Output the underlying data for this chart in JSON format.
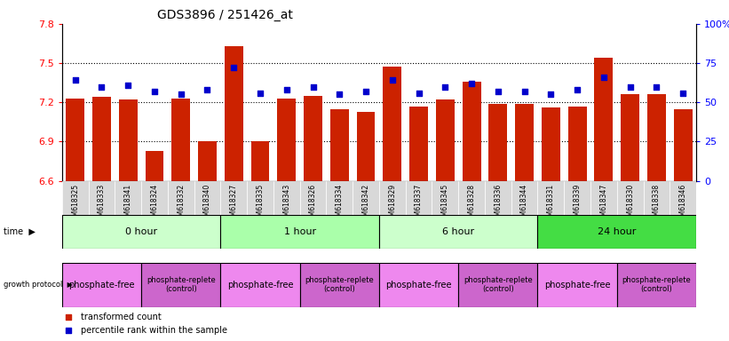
{
  "title": "GDS3896 / 251426_at",
  "samples": [
    "GSM618325",
    "GSM618333",
    "GSM618341",
    "GSM618324",
    "GSM618332",
    "GSM618340",
    "GSM618327",
    "GSM618335",
    "GSM618343",
    "GSM618326",
    "GSM618334",
    "GSM618342",
    "GSM618329",
    "GSM618337",
    "GSM618345",
    "GSM618328",
    "GSM618336",
    "GSM618344",
    "GSM618331",
    "GSM618339",
    "GSM618347",
    "GSM618330",
    "GSM618338",
    "GSM618346"
  ],
  "bar_values": [
    7.23,
    7.24,
    7.22,
    6.83,
    7.23,
    6.9,
    7.63,
    6.9,
    7.23,
    7.25,
    7.15,
    7.13,
    7.47,
    7.17,
    7.22,
    7.36,
    7.19,
    7.19,
    7.16,
    7.17,
    7.54,
    7.26,
    7.26,
    7.15
  ],
  "dot_values": [
    64,
    60,
    61,
    57,
    55,
    58,
    72,
    56,
    58,
    60,
    55,
    57,
    64,
    56,
    60,
    62,
    57,
    57,
    55,
    58,
    66,
    60,
    60,
    56
  ],
  "ylim_left": [
    6.6,
    7.8
  ],
  "ylim_right": [
    0,
    100
  ],
  "yticks_left": [
    6.6,
    6.9,
    7.2,
    7.5,
    7.8
  ],
  "yticks_right": [
    0,
    25,
    50,
    75,
    100
  ],
  "ytick_labels_right": [
    "0",
    "25",
    "50",
    "75",
    "100%"
  ],
  "hgrid_vals": [
    6.9,
    7.2,
    7.5
  ],
  "bar_color": "#cc2200",
  "dot_color": "#0000cc",
  "background_color": "#ffffff",
  "plot_bg_color": "#ffffff",
  "xticklabel_bg": "#d8d8d8",
  "time_groups": [
    {
      "label": "0 hour",
      "start": 0,
      "end": 6,
      "color": "#ccffcc"
    },
    {
      "label": "1 hour",
      "start": 6,
      "end": 12,
      "color": "#aaffaa"
    },
    {
      "label": "6 hour",
      "start": 12,
      "end": 18,
      "color": "#ccffcc"
    },
    {
      "label": "24 hour",
      "start": 18,
      "end": 24,
      "color": "#44dd44"
    }
  ],
  "protocol_groups": [
    {
      "label": "phosphate-free",
      "start": 0,
      "end": 3,
      "color": "#ee88ee",
      "fontsize": 7
    },
    {
      "label": "phosphate-replete\n(control)",
      "start": 3,
      "end": 6,
      "color": "#cc66cc",
      "fontsize": 6
    },
    {
      "label": "phosphate-free",
      "start": 6,
      "end": 9,
      "color": "#ee88ee",
      "fontsize": 7
    },
    {
      "label": "phosphate-replete\n(control)",
      "start": 9,
      "end": 12,
      "color": "#cc66cc",
      "fontsize": 6
    },
    {
      "label": "phosphate-free",
      "start": 12,
      "end": 15,
      "color": "#ee88ee",
      "fontsize": 7
    },
    {
      "label": "phosphate-replete\n(control)",
      "start": 15,
      "end": 18,
      "color": "#cc66cc",
      "fontsize": 6
    },
    {
      "label": "phosphate-free",
      "start": 18,
      "end": 21,
      "color": "#ee88ee",
      "fontsize": 7
    },
    {
      "label": "phosphate-replete\n(control)",
      "start": 21,
      "end": 24,
      "color": "#cc66cc",
      "fontsize": 6
    }
  ],
  "legend_items": [
    {
      "label": "transformed count",
      "color": "#cc2200"
    },
    {
      "label": "percentile rank within the sample",
      "color": "#0000cc"
    }
  ]
}
